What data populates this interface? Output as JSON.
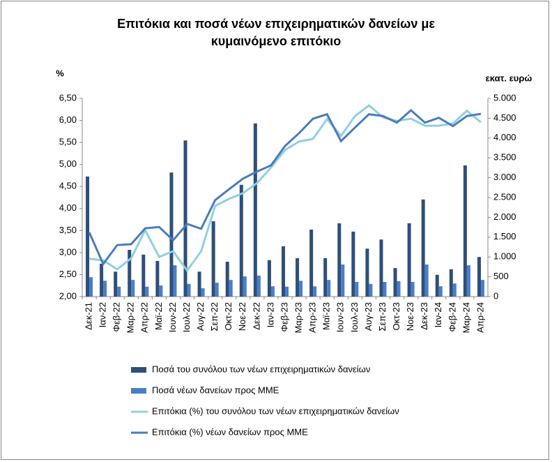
{
  "chart_data": {
    "type": "combo",
    "title": [
      "Επιτόκια και ποσά νέων επιχειρηματικών δανείων με",
      "κυμαινόμενο επιτόκιο"
    ],
    "y_label": "%",
    "y2_label": "εκατ. ευρώ",
    "categories": [
      "Δεκ-21",
      "Ιαν-22",
      "Φεβ-22",
      "Μαρ-22",
      "Απρ-22",
      "Μαϊ-22",
      "Ιουν-22",
      "Ιουλ-22",
      "Αυγ-22",
      "Σεπ-22",
      "Οκτ-22",
      "Νοε-22",
      "Δεκ-22",
      "Ιαν-23",
      "Φεβ-23",
      "Μαρ-23",
      "Απρ-23",
      "Μαϊ-23",
      "Ιουν-23",
      "Ιουλ-23",
      "Αυγ-23",
      "Σεπ-23",
      "Οκτ-23",
      "Νοε-23",
      "Δεκ-23",
      "Ιαν-24",
      "Φεβ-24",
      "Μαρ-24",
      "Απρ-24"
    ],
    "series": [
      {
        "name": "Ποσά του συνόλου των νέων επιχειρηματικών δανείων",
        "type": "bar",
        "axis": "y2",
        "color": "#2e4f7a",
        "values": [
          3030,
          830,
          630,
          1180,
          1060,
          900,
          3130,
          3940,
          630,
          1900,
          880,
          2820,
          4370,
          920,
          1270,
          970,
          1690,
          970,
          1850,
          1640,
          1210,
          1440,
          720,
          1850,
          2450,
          550,
          690,
          3310,
          1000
        ]
      },
      {
        "name": "Ποσά νέων δανείων προς ΜΜΕ",
        "type": "bar",
        "axis": "y2",
        "color": "#4a7ec9",
        "values": [
          490,
          400,
          250,
          420,
          250,
          280,
          790,
          320,
          210,
          350,
          420,
          510,
          530,
          260,
          250,
          400,
          260,
          420,
          810,
          370,
          320,
          370,
          390,
          370,
          810,
          260,
          330,
          790,
          420
        ]
      },
      {
        "name": "Επιτόκια (%) του συνόλου των νέων επιχειρηματικών δανείων",
        "type": "line",
        "axis": "y",
        "color": "#8fd0e0",
        "values": [
          2.86,
          2.82,
          2.62,
          2.87,
          3.51,
          2.9,
          3.03,
          2.59,
          3.03,
          4.06,
          4.22,
          4.35,
          4.58,
          4.93,
          5.33,
          5.52,
          5.58,
          6.03,
          5.65,
          6.1,
          6.34,
          6.07,
          5.99,
          6.04,
          5.88,
          5.88,
          5.93,
          6.22,
          5.96
        ]
      },
      {
        "name": "Επιτόκια (%) νέων δανείων προς ΜΜΕ",
        "type": "line",
        "axis": "y",
        "color": "#4a7bbd",
        "values": [
          3.46,
          2.74,
          3.17,
          3.19,
          3.55,
          3.58,
          3.28,
          3.65,
          3.54,
          4.19,
          4.44,
          4.68,
          4.84,
          4.98,
          5.42,
          5.71,
          6.04,
          6.14,
          5.53,
          5.84,
          6.14,
          6.1,
          5.95,
          6.23,
          5.95,
          6.06,
          5.87,
          6.1,
          6.15
        ]
      }
    ],
    "ylim": [
      2,
      6.5
    ],
    "yticks": [
      {
        "value": 2,
        "label": "2,00"
      },
      {
        "value": 2.5,
        "label": "2,50"
      },
      {
        "value": 3,
        "label": "3,00"
      },
      {
        "value": 3.5,
        "label": "3,50"
      },
      {
        "value": 4,
        "label": "4,00"
      },
      {
        "value": 4.5,
        "label": "4,50"
      },
      {
        "value": 5,
        "label": "5,00"
      },
      {
        "value": 5.5,
        "label": "5,50"
      },
      {
        "value": 6,
        "label": "6,00"
      },
      {
        "value": 6.5,
        "label": "6,50"
      }
    ],
    "y2lim": [
      0,
      5000
    ],
    "y2ticks": [
      0,
      500,
      {
        "value": 1000,
        "label": "1.000"
      },
      {
        "value": 1500,
        "label": "1.500"
      },
      {
        "value": 2000,
        "label": "2.000"
      },
      {
        "value": 2500,
        "label": "2.500"
      },
      {
        "value": 3000,
        "label": "3.000"
      },
      {
        "value": 3500,
        "label": "3.500"
      },
      {
        "value": 4000,
        "label": "4.000"
      },
      {
        "value": 4500,
        "label": "4.500"
      },
      {
        "value": 5000,
        "label": "5.000"
      }
    ],
    "legend": "bottom"
  }
}
